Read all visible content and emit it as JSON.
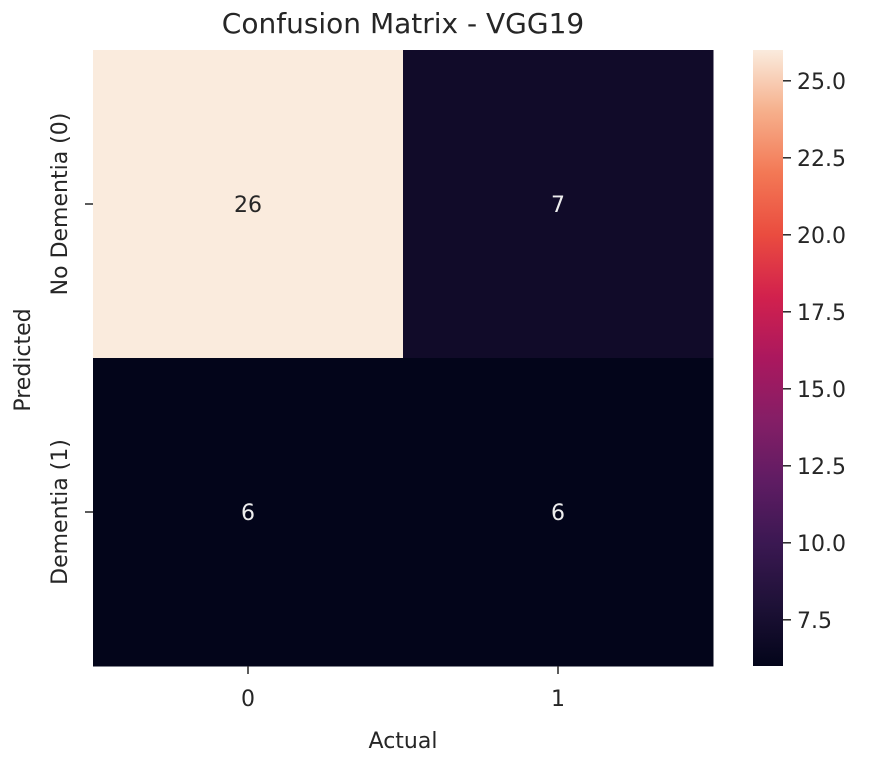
{
  "chart_data": {
    "type": "heatmap",
    "title": "Confusion Matrix - VGG19",
    "xlabel": "Actual",
    "ylabel": "Predicted",
    "x_categories": [
      "0",
      "1"
    ],
    "y_categories": [
      "No Dementia (0)",
      "Dementia (1)"
    ],
    "matrix": [
      [
        26,
        7
      ],
      [
        6,
        6
      ]
    ],
    "annotations": [
      "26",
      "7",
      "6",
      "6"
    ],
    "colormap": "rocket",
    "colorbar": {
      "range": [
        6,
        26
      ],
      "ticks": [
        7.5,
        10.0,
        12.5,
        15.0,
        17.5,
        20.0,
        22.5,
        25.0
      ],
      "tick_labels": [
        "7.5",
        "10.0",
        "12.5",
        "15.0",
        "17.5",
        "20.0",
        "22.5",
        "25.0"
      ]
    },
    "grid": false
  },
  "colors": {
    "low": "#0c0720",
    "high": "#faebdd",
    "text_dark": "#262626",
    "text_light": "#eeeeee"
  }
}
